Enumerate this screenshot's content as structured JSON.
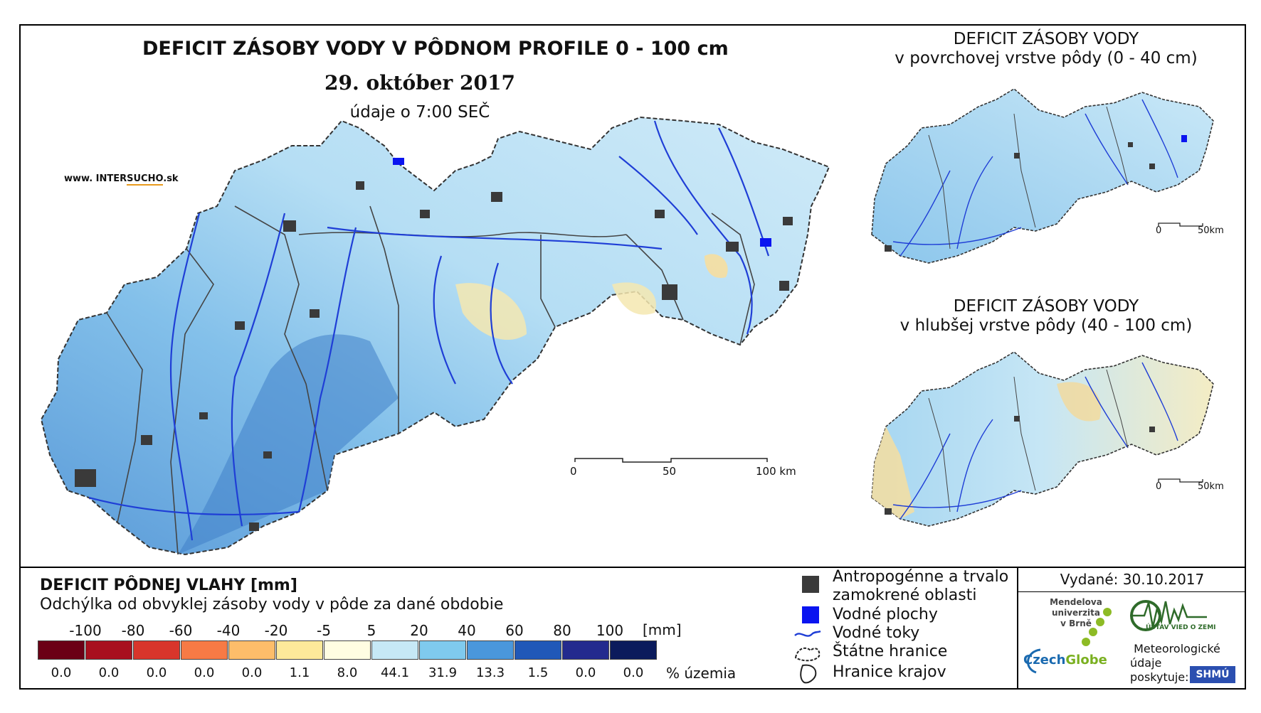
{
  "main_map": {
    "title": "DEFICIT ZÁSOBY VODY V PÔDNOM PROFILE 0 - 100 cm",
    "date": "29. október 2017",
    "time": "údaje o 7:00 SEČ",
    "website_prefix": "www. INTER",
    "website_highlight": "SUCHO",
    "website_suffix": ".sk",
    "scale": {
      "labels": [
        "0",
        "50",
        "100 km"
      ]
    }
  },
  "inset_top": {
    "title_line1": "DEFICIT ZÁSOBY VODY",
    "title_line2": "v povrchovej vrstve pôdy (0 - 40 cm)",
    "scale": {
      "labels": [
        "0",
        "50km"
      ]
    }
  },
  "inset_bottom": {
    "title_line1": "DEFICIT ZÁSOBY VODY",
    "title_line2": "v hlubšej vrstve pôdy (40 - 100 cm)",
    "scale": {
      "labels": [
        "0",
        "50km"
      ]
    }
  },
  "legend": {
    "title": "DEFICIT PÔDNEJ VLAHY [mm]",
    "subtitle": "Odchýlka od obvyklej zásoby vody v pôde za dané obdobie",
    "ticks": [
      "-100",
      "-80",
      "-60",
      "-40",
      "-20",
      "-5",
      "5",
      "20",
      "40",
      "60",
      "80",
      "100"
    ],
    "unit": "[mm]",
    "colors": [
      "#6b0016",
      "#a8101e",
      "#d8352b",
      "#f77a45",
      "#fdbd6a",
      "#fde99a",
      "#fffde2",
      "#c6e8f6",
      "#7fcaee",
      "#4a97dc",
      "#2058b8",
      "#232a8e",
      "#0b1b5c"
    ],
    "percentages": [
      "0.0",
      "0.0",
      "0.0",
      "0.0",
      "0.0",
      "1.1",
      "8.0",
      "44.1",
      "31.9",
      "13.3",
      "1.5",
      "0.0",
      "0.0"
    ],
    "percent_label": "% územia"
  },
  "symbols": {
    "urban_line1": "Antropogénne a trvalo",
    "urban_line2": "zamokrené oblasti",
    "water_bodies": "Vodné plochy",
    "rivers": "Vodné toky",
    "state_border": "Štátne hranice",
    "region_border": "Hranice krajov",
    "colors": {
      "urban": "#3a3a3a",
      "water": "#0a14f0",
      "river": "#1f3ed6"
    }
  },
  "issuer": {
    "issued": "Vydané: 30.10.2017",
    "mendel_line1": "Mendelova",
    "mendel_line2": "univerzita",
    "mendel_line3": "v Brně",
    "czechglobe_a": "Czech",
    "czechglobe_b": "Globe",
    "ustav": "ÚSTAV VIED O ZEMI",
    "meteo_line1": "Meteorologické",
    "meteo_line2": "údaje",
    "meteo_line3": "poskytuje:",
    "shmu": "SHMÚ"
  }
}
